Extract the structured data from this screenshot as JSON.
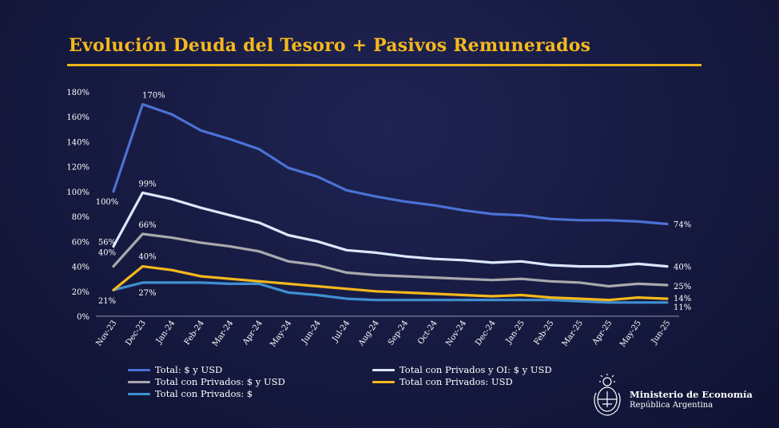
{
  "title": "Evolución Deuda del Tesoro + Pasivos Remunerados",
  "colors": {
    "title": "#f5b81c",
    "rule": "#f0b21a",
    "text": "#ffffff"
  },
  "chart_data": {
    "type": "line",
    "title": "Evolución Deuda del Tesoro + Pasivos Remunerados",
    "xlabel": "",
    "ylabel": "",
    "ylim": [
      0,
      180
    ],
    "grid": false,
    "legend_position": "bottom-left",
    "y_ticks": [
      "0%",
      "20%",
      "40%",
      "60%",
      "80%",
      "100%",
      "120%",
      "140%",
      "160%",
      "180%"
    ],
    "categories": [
      "Nov-23",
      "Dec-23",
      "Jan-24",
      "Feb-24",
      "Mar-24",
      "Apr-24",
      "May-24",
      "Jun-24",
      "Jul-24",
      "Aug-24",
      "Sep-24",
      "Oct-24",
      "Nov-24",
      "Dec-24",
      "Jan-25",
      "Feb-25",
      "Mar-25",
      "Apr-25",
      "May-25",
      "Jun-25"
    ],
    "series": [
      {
        "name": "Total: $ y USD",
        "color": "#4a72d4",
        "values": [
          100,
          170,
          162,
          149,
          142,
          134,
          119,
          112,
          101,
          96,
          92,
          89,
          85,
          82,
          81,
          78,
          77,
          77,
          76,
          74
        ],
        "labels": [
          {
            "index": 0,
            "text": "100%"
          },
          {
            "index": 1,
            "text": "170%"
          },
          {
            "index": 19,
            "text": "74%"
          }
        ]
      },
      {
        "name": "Total con Privados y OI: $ y USD",
        "color": "#dbe8ff",
        "values": [
          56,
          99,
          94,
          87,
          81,
          75,
          65,
          60,
          53,
          51,
          48,
          46,
          45,
          43,
          44,
          41,
          40,
          40,
          42,
          40
        ],
        "labels": [
          {
            "index": 0,
            "text": "56%"
          },
          {
            "index": 1,
            "text": "99%"
          },
          {
            "index": 19,
            "text": "40%"
          }
        ]
      },
      {
        "name": "Total con Privados: $ y USD",
        "color": "#a9a9ad",
        "values": [
          40,
          66,
          63,
          59,
          56,
          52,
          44,
          41,
          35,
          33,
          32,
          31,
          30,
          29,
          30,
          28,
          27,
          24,
          26,
          25
        ],
        "labels": [
          {
            "index": 0,
            "text": "40%"
          },
          {
            "index": 1,
            "text": "66%"
          },
          {
            "index": 19,
            "text": "25%"
          }
        ]
      },
      {
        "name": "Total con Privados: USD",
        "color": "#f5b81c",
        "values": [
          21,
          40,
          37,
          32,
          30,
          28,
          26,
          24,
          22,
          20,
          19,
          18,
          17,
          16,
          17,
          15,
          14,
          13,
          15,
          14
        ],
        "labels": [
          {
            "index": 1,
            "text": "40%"
          },
          {
            "index": 19,
            "text": "14%"
          }
        ]
      },
      {
        "name": "Total con Privados: $",
        "color": "#3e90d2",
        "values": [
          21,
          27,
          27,
          27,
          26,
          26,
          19,
          17,
          14,
          13,
          13,
          13,
          13,
          13,
          13,
          13,
          12,
          11,
          11,
          11
        ],
        "labels": [
          {
            "index": 0,
            "text": "21%"
          },
          {
            "index": 1,
            "text": "27%"
          },
          {
            "index": 19,
            "text": "11%"
          }
        ]
      }
    ]
  },
  "legend": {
    "items": [
      {
        "label": "Total: $ y USD",
        "color": "#4a72d4"
      },
      {
        "label": "Total con Privados y OI: $ y USD",
        "color": "#dbe8ff"
      },
      {
        "label": "Total con Privados: $ y USD",
        "color": "#a9a9ad"
      },
      {
        "label": "Total con Privados: USD",
        "color": "#f5b81c"
      },
      {
        "label": "Total con Privados: $",
        "color": "#3e90d2"
      }
    ]
  },
  "logo": {
    "line1": "Ministerio de Economía",
    "line2": "República Argentina"
  }
}
